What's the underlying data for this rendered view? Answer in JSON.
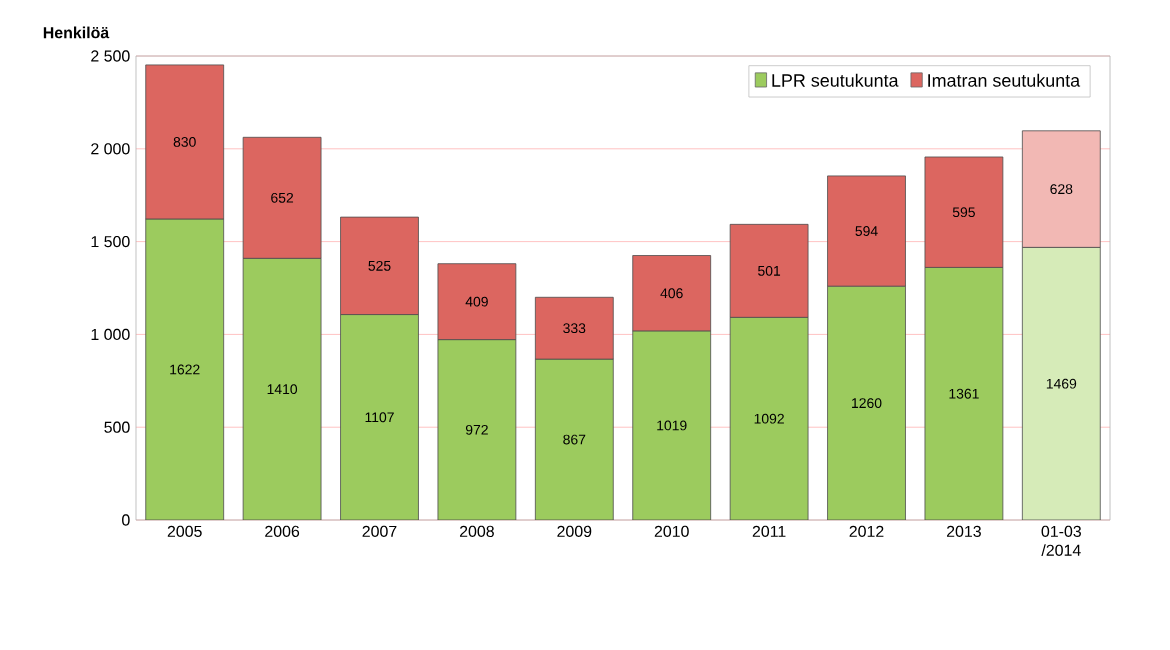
{
  "chart_data": {
    "type": "bar",
    "stacked": true,
    "ylabel": "Henkilöä",
    "categories": [
      "2005",
      "2006",
      "2007",
      "2008",
      "2009",
      "2010",
      "2011",
      "2012",
      "2013",
      "01-03 /2014"
    ],
    "series": [
      {
        "name": "LPR seutukunta",
        "color": "#9ccb5e",
        "colors": [
          "#9ccb5e",
          "#9ccb5e",
          "#9ccb5e",
          "#9ccb5e",
          "#9ccb5e",
          "#9ccb5e",
          "#9ccb5e",
          "#9ccb5e",
          "#9ccb5e",
          "#d6ebb8"
        ],
        "values": [
          1622,
          1410,
          1107,
          972,
          867,
          1019,
          1092,
          1260,
          1361,
          1469
        ]
      },
      {
        "name": "Imatran seutukunta",
        "color": "#dc6660",
        "colors": [
          "#dc6660",
          "#dc6660",
          "#dc6660",
          "#dc6660",
          "#dc6660",
          "#dc6660",
          "#dc6660",
          "#dc6660",
          "#dc6660",
          "#f2b8b4"
        ],
        "values": [
          830,
          652,
          525,
          409,
          333,
          406,
          501,
          594,
          595,
          628
        ]
      }
    ],
    "ylim": [
      0,
      2500
    ],
    "yticks": [
      0,
      {
        "value": 500,
        "label": "500"
      },
      {
        "value": 1000,
        "label": "1 000"
      },
      {
        "value": 1500,
        "label": "1 500"
      },
      {
        "value": 2000,
        "label": "2 000"
      },
      {
        "value": 2500,
        "label": "2 500"
      }
    ],
    "grid": "y",
    "legend": "top",
    "data_labels": true
  }
}
